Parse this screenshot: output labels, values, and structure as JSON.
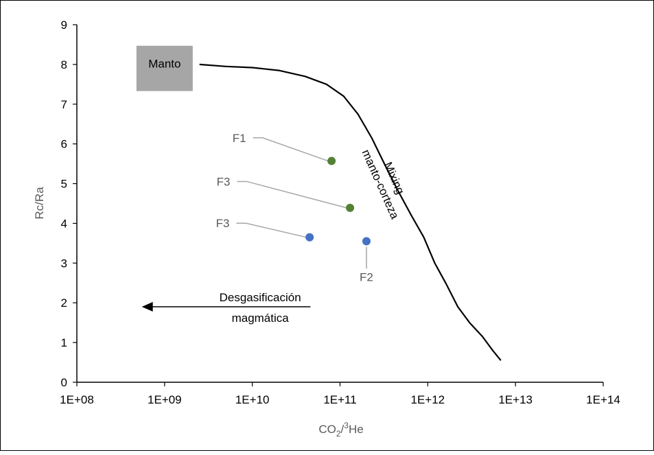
{
  "chart_data": {
    "type": "scatter",
    "xlabel": "CO2/3He",
    "xlabel_parts": {
      "base": "CO",
      "sub": "2",
      "slash": "/",
      "sup": "3",
      "tail": "He"
    },
    "ylabel": "Rc/Ra",
    "x_scale": "log",
    "xlim": [
      100000000,
      100000000000000
    ],
    "ylim": [
      0,
      9
    ],
    "x_ticks": [
      100000000,
      1000000000,
      10000000000,
      100000000000,
      1000000000000,
      10000000000000,
      100000000000000
    ],
    "x_tick_labels": [
      "1E+08",
      "1E+09",
      "1E+10",
      "1E+11",
      "1E+12",
      "1E+13",
      "1E+14"
    ],
    "y_ticks": [
      0,
      1,
      2,
      3,
      4,
      5,
      6,
      7,
      8,
      9
    ],
    "y_tick_labels": [
      "0",
      "1",
      "2",
      "3",
      "4",
      "5",
      "6",
      "7",
      "8",
      "9"
    ],
    "grid": false,
    "legend": "none",
    "points": [
      {
        "label": "F1",
        "x": 80000000000,
        "y": 5.57,
        "color": "#538135",
        "label_x": 8500000000,
        "label_y": 6.05
      },
      {
        "label": "F3",
        "x": 130000000000,
        "y": 4.39,
        "color": "#538135",
        "label_x": 5600000000,
        "label_y": 4.95
      },
      {
        "label": "F3",
        "x": 45000000000,
        "y": 3.65,
        "color": "#4472C4",
        "label_x": 5500000000,
        "label_y": 3.9
      },
      {
        "label": "F2",
        "x": 200000000000,
        "y": 3.55,
        "color": "#4472C4",
        "label_x": 200000000000,
        "label_y": 2.55
      }
    ],
    "mixing_curve": {
      "color": "#000000",
      "label_line1": "Mixing",
      "label_line2": "manto-corteza",
      "x": [
        2500000000,
        5000000000,
        10000000000,
        20000000000,
        40000000000,
        70000000000,
        110000000000,
        160000000000,
        230000000000,
        320000000000,
        450000000000,
        650000000000,
        900000000000,
        1200000000000,
        1600000000000,
        2200000000000,
        3000000000000,
        4200000000000,
        5500000000000,
        6800000000000
      ],
      "y": [
        8.0,
        7.95,
        7.92,
        7.85,
        7.7,
        7.5,
        7.2,
        6.75,
        6.15,
        5.5,
        4.85,
        4.2,
        3.65,
        3.0,
        2.5,
        1.9,
        1.5,
        1.15,
        0.8,
        0.55
      ]
    },
    "mantle_box": {
      "label": "Manto",
      "x_center": 1000000000,
      "y_center": 7.9,
      "color": "#A6A6A6"
    },
    "annotation": {
      "line1": "Desgasificación",
      "line2": "magmática",
      "arrow_from_x": 46000000000,
      "arrow_to_x": 550000000,
      "arrow_y": 1.9
    },
    "colors": {
      "axis": "#000000",
      "label_gray": "#595959",
      "leader": "#A6A6A6"
    }
  }
}
